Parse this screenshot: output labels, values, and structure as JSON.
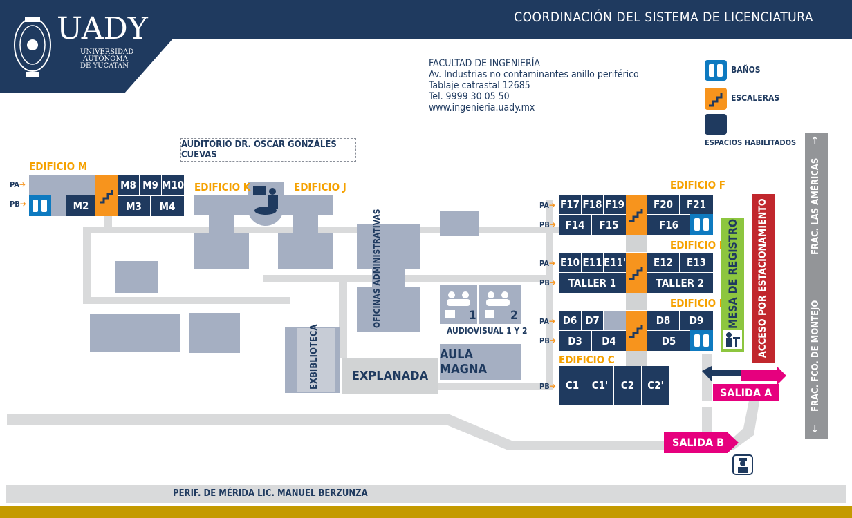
{
  "header": {
    "logo_text": "UADY",
    "university_lines": [
      "UNIVERSIDAD",
      "AUTÓNOMA",
      "DE YUCATÁN"
    ],
    "coordination_title": "COORDINACIÓN DEL SISTEMA DE LICENCIATURA",
    "colors": {
      "navy": "#1f3a5f",
      "gold": "#c49a00",
      "orange": "#f7941d",
      "pink": "#e6007e",
      "red": "#c1272d",
      "green": "#8dc63f"
    }
  },
  "address": {
    "name": "FACULTAD DE INGENIERÍA",
    "line1": "Av. Industrias no contaminantes anillo periférico",
    "line2": "Tablaje catrastal 12685",
    "phone": "Tel.  9999 30 05 50",
    "web": "www.ingenieria.uady.mx"
  },
  "legend": {
    "banos": "BAÑOS",
    "escaleras": "ESCALERAS",
    "espacios": "ESPACIOS HABILITADOS"
  },
  "auditorio": "AUDITORIO DR. OSCAR GONZÁLES CUEVAS",
  "levels": {
    "pa": "PA",
    "pb": "PB"
  },
  "edificio_m": {
    "title": "EDIFICIO M",
    "pa": [
      "M8",
      "M9",
      "M10"
    ],
    "pb": [
      "M2",
      "M3",
      "M4"
    ]
  },
  "edificio_k": {
    "title": "EDIFICIO K"
  },
  "edificio_j": {
    "title": "EDIFICIO J"
  },
  "edificio_f": {
    "title": "EDIFICIO F",
    "pa": [
      "F17",
      "F18",
      "F19",
      "F20",
      "F21"
    ],
    "pb": [
      "F14",
      "F15",
      "F16"
    ]
  },
  "edificio_e": {
    "title": "EDIFICIO E",
    "pa": [
      "E10",
      "E11",
      "E11'",
      "E12",
      "E13"
    ],
    "pb": [
      "TALLER 1",
      "TALLER 2"
    ]
  },
  "edificio_d": {
    "title": "EDIFICIO D",
    "pa": [
      "D6",
      "D7",
      "D8",
      "D9"
    ],
    "pb": [
      "D3",
      "D4",
      "D5"
    ]
  },
  "edificio_c": {
    "title": "EDIFICIO C",
    "pb": [
      "C1",
      "C1'",
      "C2",
      "C2'"
    ]
  },
  "oficinas": "OFICINAS ADMINISTRATIVAS",
  "audiovisual": {
    "label": "AUDIOVISUAL 1 Y 2",
    "n1": "1",
    "n2": "2"
  },
  "exbiblioteca": "EXBIBLIOTECA",
  "explanada": "EXPLANADA",
  "aula_magna": "AULA MAGNA",
  "mesa_registro": "MESA DE REGISTRO",
  "acceso": "ACCESO POR ESTACIONAMIENTO",
  "salida_a": "SALIDA A",
  "salida_b": "SALIDA B",
  "frac_americas": "FRAC. LAS AMÉRICAS",
  "frac_montejo": "FRAC. FCO. DE MONTEJO",
  "perif": "PERIF. DE MÉRIDA LIC. MANUEL BERZUNZA"
}
